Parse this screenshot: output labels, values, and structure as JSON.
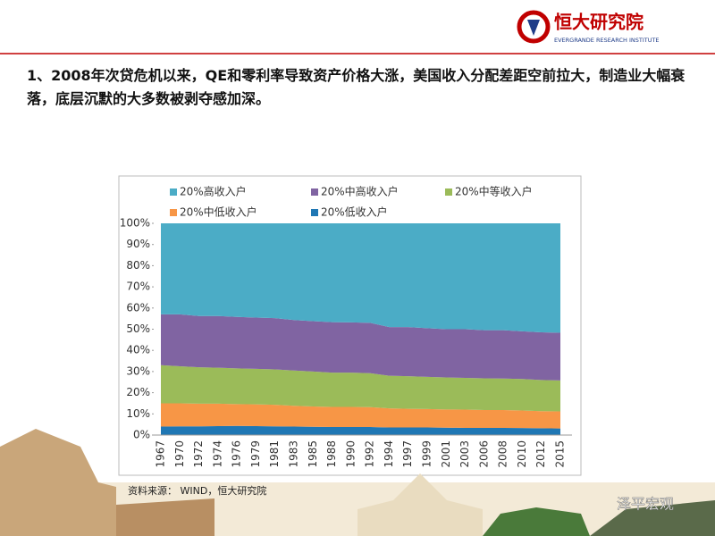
{
  "header": {
    "logo": "恒大研究院",
    "logo_sub": "EVERGRANDE RESEARCH INSTITUTE",
    "title": "1、2008年次贷危机以来，QE和零利率导致资产价格大涨，美国收入分配差距空前拉大，制造业大幅衰落，底层沉默的大多数被剥夺感加深。"
  },
  "source": "资料来源： WIND，恒大研究院",
  "watermark": "泽平宏观",
  "chart_data": {
    "type": "area",
    "stacked": true,
    "categories": [
      "1967",
      "1970",
      "1972",
      "1974",
      "1976",
      "1979",
      "1981",
      "1983",
      "1985",
      "1988",
      "1990",
      "1992",
      "1994",
      "1997",
      "1999",
      "2001",
      "2003",
      "2006",
      "2008",
      "2010",
      "2012",
      "2015"
    ],
    "series": [
      {
        "name": "20%高收入户",
        "color": "#4bacc6",
        "values": [
          43,
          43,
          43.8,
          43.8,
          44.2,
          44.5,
          44.8,
          45.7,
          46.2,
          46.7,
          46.8,
          47,
          49,
          49,
          49.5,
          50,
          50,
          50.5,
          50.5,
          51,
          51.5,
          51.7
        ]
      },
      {
        "name": "20%中高收入户",
        "color": "#8064a2",
        "values": [
          24,
          24.5,
          24.2,
          24.4,
          24.3,
          24.2,
          24.2,
          23.8,
          23.8,
          23.8,
          23.7,
          23.8,
          23,
          23.2,
          23,
          22.8,
          23,
          22.7,
          22.8,
          22.5,
          22.5,
          22.5
        ]
      },
      {
        "name": "20%中等收入户",
        "color": "#9bbb59",
        "values": [
          18,
          17.5,
          17.2,
          17,
          16.9,
          16.8,
          16.7,
          16.7,
          16.5,
          16.2,
          16.2,
          16,
          15.4,
          15.4,
          15.2,
          15.1,
          15,
          15,
          14.9,
          14.9,
          14.7,
          14.6
        ]
      },
      {
        "name": "20%中低收入户",
        "color": "#f79646",
        "values": [
          11,
          10.9,
          10.7,
          10.6,
          10.3,
          10.3,
          10.2,
          9.8,
          9.6,
          9.5,
          9.5,
          9.4,
          9,
          8.8,
          8.7,
          8.6,
          8.6,
          8.4,
          8.4,
          8.3,
          8.1,
          8.1
        ]
      },
      {
        "name": "20%低收入户",
        "color": "#1f77b4",
        "values": [
          4,
          4.1,
          4.1,
          4.2,
          4.3,
          4.2,
          4.1,
          4,
          3.9,
          3.8,
          3.8,
          3.8,
          3.6,
          3.6,
          3.6,
          3.5,
          3.4,
          3.4,
          3.4,
          3.3,
          3.2,
          3.1
        ]
      }
    ],
    "ylim": [
      0,
      100
    ],
    "yticks": [
      {
        "value": 0,
        "label": "0%"
      },
      {
        "value": 10,
        "label": "10%"
      },
      {
        "value": 20,
        "label": "20%"
      },
      {
        "value": 30,
        "label": "30%"
      },
      {
        "value": 40,
        "label": "40%"
      },
      {
        "value": 50,
        "label": "50%"
      },
      {
        "value": 60,
        "label": "60%"
      },
      {
        "value": 70,
        "label": "70%"
      },
      {
        "value": 80,
        "label": "80%"
      },
      {
        "value": 90,
        "label": "90%"
      },
      {
        "value": 100,
        "label": "100%"
      }
    ]
  }
}
